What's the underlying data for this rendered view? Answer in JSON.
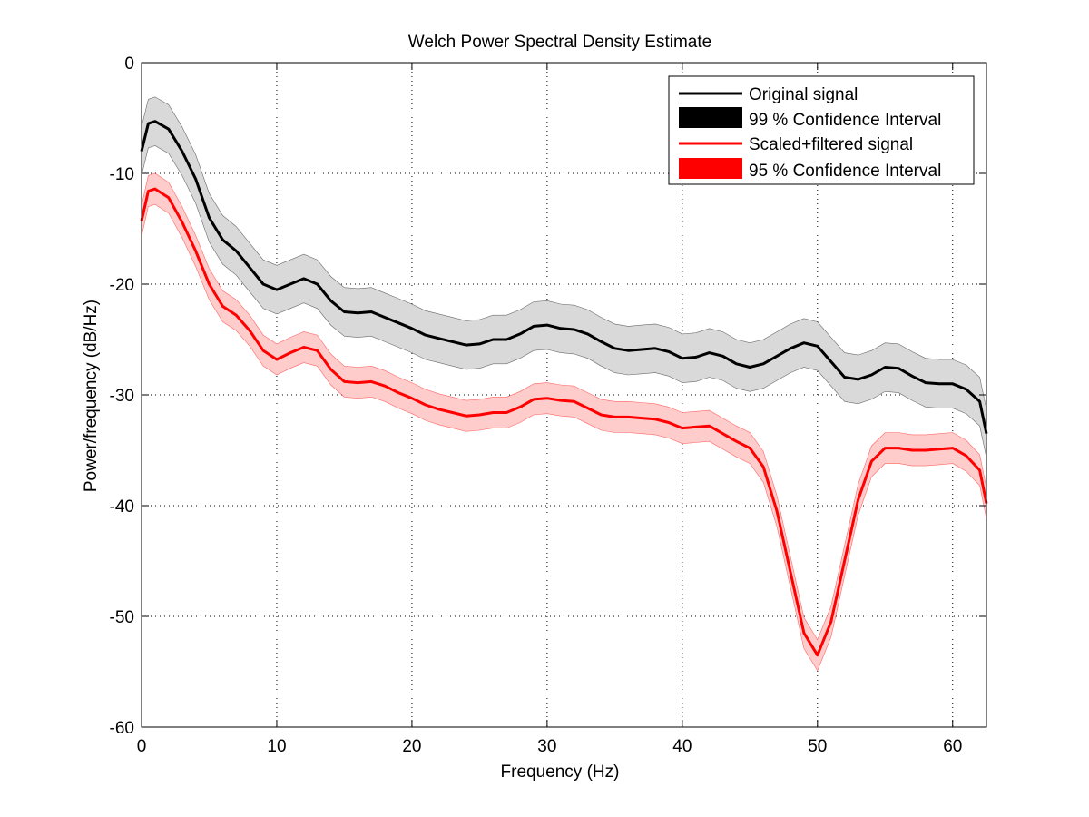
{
  "chart_data": {
    "type": "line",
    "title": "Welch Power Spectral Density Estimate",
    "xlabel": "Frequency (Hz)",
    "ylabel": "Power/frequency (dB/Hz)",
    "xlim": [
      0,
      62.5
    ],
    "ylim": [
      -60,
      0
    ],
    "xticks": [
      0,
      10,
      20,
      30,
      40,
      50,
      60
    ],
    "yticks": [
      0,
      -10,
      -20,
      -30,
      -40,
      -50,
      -60
    ],
    "grid": true,
    "legend_position": "top-right",
    "legend": [
      {
        "label": "Original signal",
        "kind": "line",
        "color": "#000000"
      },
      {
        "label": "99 % Confidence Interval",
        "kind": "patch",
        "color": "#000000"
      },
      {
        "label": "Scaled+filtered signal",
        "kind": "line",
        "color": "#ff0000"
      },
      {
        "label": "95 % Confidence Interval",
        "kind": "patch",
        "color": "#ff0000"
      }
    ],
    "series": [
      {
        "name": "Original signal",
        "color": "#000000",
        "ci_fill": "#d9d9d9",
        "ci_band": 2.2,
        "x": [
          0,
          0.5,
          1,
          2,
          3,
          4,
          5,
          6,
          7,
          8,
          9,
          10,
          11,
          12,
          13,
          14,
          15,
          16,
          17,
          18,
          19,
          20,
          21,
          22,
          23,
          24,
          25,
          26,
          27,
          28,
          29,
          30,
          31,
          32,
          33,
          34,
          35,
          36,
          37,
          38,
          39,
          40,
          41,
          42,
          43,
          44,
          45,
          46,
          47,
          48,
          49,
          50,
          51,
          52,
          53,
          54,
          55,
          56,
          57,
          58,
          59,
          60,
          61,
          62,
          62.5
        ],
        "values": [
          -8,
          -5.5,
          -5.3,
          -6,
          -8,
          -10.5,
          -14,
          -16,
          -17,
          -18.5,
          -20,
          -20.5,
          -20,
          -19.5,
          -20,
          -21.5,
          -22.5,
          -22.6,
          -22.5,
          -23,
          -23.5,
          -24,
          -24.6,
          -24.9,
          -25.2,
          -25.5,
          -25.4,
          -25,
          -25,
          -24.5,
          -23.8,
          -23.7,
          -24,
          -24.1,
          -24.5,
          -25.2,
          -25.8,
          -26,
          -25.9,
          -25.8,
          -26.1,
          -26.7,
          -26.6,
          -26.2,
          -26.5,
          -27.2,
          -27.5,
          -27.2,
          -26.5,
          -25.8,
          -25.3,
          -25.6,
          -27,
          -28.4,
          -28.6,
          -28.2,
          -27.5,
          -27.6,
          -28.3,
          -28.9,
          -29,
          -29,
          -29.5,
          -30.6,
          -33.5
        ]
      },
      {
        "name": "Scaled+filtered signal",
        "color": "#ff0000",
        "ci_fill": "#ffcccc",
        "ci_band": 1.4,
        "x": [
          0,
          0.5,
          1,
          2,
          3,
          4,
          5,
          6,
          7,
          8,
          9,
          10,
          11,
          12,
          13,
          14,
          15,
          16,
          17,
          18,
          19,
          20,
          21,
          22,
          23,
          24,
          25,
          26,
          27,
          28,
          29,
          30,
          31,
          32,
          33,
          34,
          35,
          36,
          37,
          38,
          39,
          40,
          41,
          42,
          43,
          44,
          45,
          46,
          47,
          48,
          49,
          50,
          51,
          52,
          53,
          54,
          55,
          56,
          57,
          58,
          59,
          60,
          61,
          62,
          62.5
        ],
        "values": [
          -14.3,
          -11.6,
          -11.4,
          -12.2,
          -14.4,
          -17,
          -20,
          -22,
          -22.8,
          -24.2,
          -26,
          -26.8,
          -26.2,
          -25.7,
          -26,
          -27.7,
          -28.8,
          -28.9,
          -28.8,
          -29.2,
          -29.8,
          -30.3,
          -30.9,
          -31.3,
          -31.6,
          -31.9,
          -31.8,
          -31.6,
          -31.6,
          -31.1,
          -30.4,
          -30.3,
          -30.5,
          -30.6,
          -31.2,
          -31.8,
          -32,
          -32,
          -32.1,
          -32.2,
          -32.5,
          -33,
          -32.9,
          -32.8,
          -33.5,
          -34.2,
          -34.8,
          -36.5,
          -40.5,
          -46,
          -51.5,
          -53.5,
          -50.5,
          -45,
          -39.5,
          -36,
          -34.8,
          -34.8,
          -35,
          -35,
          -34.9,
          -34.8,
          -35.5,
          -36.8,
          -39.8
        ]
      }
    ]
  }
}
